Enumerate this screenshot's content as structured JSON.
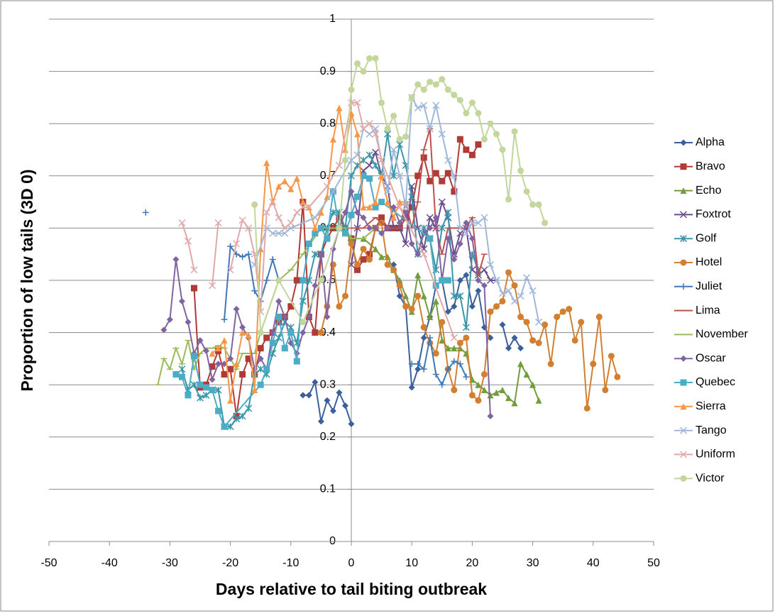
{
  "chart_data": {
    "type": "line",
    "xlabel": "Days relative to tail biting outbreak",
    "ylabel": "Proportion of low tails (3D 0)",
    "xlim": [
      -50,
      50
    ],
    "xticks": [
      -50,
      -40,
      -30,
      -20,
      -10,
      0,
      10,
      20,
      30,
      40,
      50
    ],
    "ylim": [
      0,
      1
    ],
    "yticks": [
      0,
      0.1,
      0.2,
      0.3,
      0.4,
      0.5,
      0.6,
      0.7,
      0.8,
      0.9,
      1
    ],
    "grid": true,
    "legend": "right",
    "series": [
      {
        "name": "Alpha",
        "color": "#3b5f9a",
        "marker": "diamond",
        "x": [
          -8,
          -7,
          -6,
          -5,
          -4,
          -3,
          -2,
          -1,
          0,
          3,
          7,
          8,
          9,
          10,
          11,
          12,
          13,
          14,
          15,
          16,
          17,
          18,
          19,
          20,
          21,
          22,
          23,
          24,
          25,
          26,
          27,
          28
        ],
        "values": [
          0.28,
          0.28,
          0.305,
          0.23,
          0.27,
          0.25,
          0.285,
          0.26,
          0.225,
          null,
          0.53,
          0.47,
          0.45,
          0.295,
          0.33,
          0.39,
          0.43,
          0.49,
          0.5,
          0.44,
          0.45,
          0.5,
          0.51,
          0.45,
          0.48,
          0.41,
          0.39,
          null,
          0.415,
          0.37,
          0.39,
          0.37
        ]
      },
      {
        "name": "Bravo",
        "color": "#b03a35",
        "marker": "square",
        "x": [
          -26,
          -25,
          -24,
          -23,
          -22,
          -21,
          -20,
          -19,
          -18,
          -17,
          -16,
          -15,
          -14,
          -13,
          -12,
          -11,
          -10,
          -9,
          -8,
          -7,
          -6,
          -5,
          -4,
          -3,
          -2,
          -1,
          0,
          1,
          2,
          3,
          4,
          5,
          6,
          7,
          8,
          9,
          10,
          11,
          12,
          13,
          14,
          15,
          16,
          17,
          18,
          19,
          20,
          21
        ],
        "values": [
          0.485,
          0.295,
          0.3,
          0.335,
          0.365,
          0.32,
          0.33,
          0.24,
          0.32,
          0.35,
          0.32,
          0.37,
          0.39,
          0.4,
          0.42,
          0.43,
          0.45,
          0.5,
          0.65,
          0.43,
          0.4,
          0.55,
          0.58,
          0.6,
          0.62,
          0.6,
          0.58,
          0.52,
          0.54,
          0.55,
          0.6,
          0.62,
          0.6,
          0.6,
          0.6,
          0.62,
          0.64,
          0.7,
          0.735,
          0.69,
          0.705,
          0.69,
          0.705,
          0.67,
          0.77,
          0.75,
          0.74,
          0.76
        ]
      },
      {
        "name": "Echo",
        "color": "#739c3c",
        "marker": "triangle",
        "x": [
          -2,
          0,
          2,
          4,
          5,
          6,
          7,
          8,
          9,
          10,
          11,
          12,
          13,
          14,
          15,
          16,
          17,
          18,
          19,
          20,
          21,
          22,
          23,
          24,
          25,
          26,
          27,
          28,
          29,
          30,
          31
        ],
        "values": [
          0.6,
          0.58,
          0.58,
          0.56,
          0.545,
          0.545,
          0.52,
          0.5,
          0.47,
          0.44,
          0.51,
          0.47,
          0.43,
          0.46,
          0.385,
          0.37,
          0.37,
          0.37,
          0.36,
          0.31,
          0.3,
          0.29,
          0.28,
          0.285,
          0.29,
          0.275,
          0.265,
          0.34,
          0.32,
          0.3,
          0.27
        ]
      },
      {
        "name": "Foxtrot",
        "color": "#6a4c8c",
        "marker": "x",
        "x": [
          0,
          1,
          2,
          3,
          4,
          5,
          6,
          7,
          8,
          9,
          10,
          11,
          12,
          13,
          14,
          15,
          16,
          17,
          18,
          19,
          20,
          21,
          22,
          23,
          24
        ],
        "values": [
          0.53,
          0.6,
          0.71,
          0.72,
          0.745,
          0.7,
          0.68,
          0.6,
          0.6,
          0.57,
          0.68,
          0.6,
          0.56,
          0.62,
          0.6,
          0.65,
          0.62,
          0.55,
          0.59,
          0.6,
          0.52,
          0.51,
          0.52,
          0.5,
          0.5
        ]
      },
      {
        "name": "Golf",
        "color": "#3b95a8",
        "marker": "star",
        "x": [
          -28,
          -27,
          -26,
          -25,
          -24,
          -23,
          -22,
          -21,
          -20,
          -19,
          -18,
          -17,
          -16,
          -15,
          -14,
          -13,
          -12,
          -11,
          -10,
          -9,
          -8,
          -7,
          -6,
          -5,
          -4,
          -3,
          -2,
          -1,
          0,
          1,
          2,
          3,
          4,
          5,
          6,
          7,
          8,
          9,
          10,
          11,
          12,
          13,
          14,
          15,
          16,
          17,
          18,
          19,
          20,
          21
        ],
        "values": [
          0.33,
          0.29,
          0.3,
          0.275,
          0.28,
          0.29,
          0.29,
          0.22,
          0.22,
          0.235,
          0.24,
          0.255,
          0.32,
          0.33,
          0.32,
          0.36,
          0.39,
          0.42,
          0.41,
          0.38,
          0.46,
          0.5,
          0.55,
          0.55,
          0.6,
          0.63,
          0.63,
          0.6,
          0.7,
          0.72,
          0.73,
          0.74,
          0.72,
          0.7,
          0.78,
          0.7,
          0.76,
          0.72,
          0.66,
          0.55,
          0.6,
          0.58,
          0.52,
          0.6,
          0.63,
          0.47,
          0.47,
          0.41,
          0.55,
          0.52
        ]
      },
      {
        "name": "Hotel",
        "color": "#d27f32",
        "marker": "circle",
        "x": [
          -5,
          -4,
          -3,
          -2,
          -1,
          0,
          1,
          2,
          3,
          4,
          5,
          6,
          7,
          8,
          9,
          10,
          11,
          12,
          13,
          14,
          15,
          16,
          17,
          18,
          19,
          20,
          21,
          22,
          23,
          24,
          25,
          26,
          27,
          28,
          29,
          30,
          31,
          32,
          33,
          34,
          35,
          36,
          37,
          38,
          39,
          40,
          41,
          42,
          43,
          44
        ],
        "values": [
          0.4,
          0.45,
          0.53,
          0.45,
          0.47,
          0.57,
          0.53,
          0.56,
          0.54,
          0.6,
          0.61,
          0.53,
          0.52,
          0.49,
          0.45,
          0.445,
          0.47,
          0.41,
          0.38,
          0.36,
          0.42,
          0.33,
          0.29,
          0.38,
          0.39,
          0.28,
          0.27,
          0.32,
          0.44,
          0.45,
          0.46,
          0.515,
          0.49,
          0.43,
          0.42,
          0.385,
          0.38,
          0.415,
          0.34,
          0.43,
          0.44,
          0.445,
          0.385,
          0.42,
          0.255,
          0.34,
          0.43,
          0.29,
          0.355,
          0.315
        ]
      },
      {
        "name": "Juliet",
        "color": "#3e78b8",
        "marker": "plus",
        "x": [
          -34,
          -30,
          -21,
          -20,
          -19,
          -18,
          -17,
          -16,
          -15,
          -14,
          -13,
          -12,
          0,
          10,
          11,
          12,
          13,
          14,
          15,
          16,
          17,
          18,
          19
        ],
        "values": [
          0.63,
          null,
          0.425,
          0.565,
          0.55,
          0.545,
          0.55,
          0.48,
          0.46,
          0.5,
          0.54,
          0.5,
          null,
          0.34,
          0.34,
          0.33,
          0.39,
          0.32,
          0.3,
          0.33,
          0.345,
          0.34,
          0.315
        ]
      },
      {
        "name": "Lima",
        "color": "#c0504d",
        "marker": "dash",
        "x": [
          0,
          2,
          4,
          6,
          8,
          9,
          10,
          11,
          12,
          13,
          14,
          15,
          16,
          17,
          18,
          19,
          20,
          21,
          22
        ],
        "values": [
          0.6,
          0.6,
          0.62,
          0.6,
          0.6,
          0.65,
          0.6,
          0.65,
          0.75,
          0.79,
          0.6,
          0.55,
          0.6,
          0.6,
          0.6,
          0.6,
          0.62,
          0.51,
          0.55
        ]
      },
      {
        "name": "November",
        "color": "#9bbb59",
        "marker": "dash",
        "x": [
          -32,
          -31,
          -30,
          -29,
          -28,
          -27,
          -26,
          -25,
          -24,
          -23,
          -22,
          -21,
          -20,
          -19,
          -18,
          -17,
          -16,
          -15,
          -12,
          -10,
          -8,
          -5,
          -3,
          -1,
          0,
          2,
          4
        ],
        "values": [
          0.3,
          0.35,
          0.33,
          0.37,
          0.34,
          0.385,
          0.33,
          0.36,
          0.37,
          0.37,
          0.375,
          0.37,
          0.35,
          0.33,
          0.36,
          0.36,
          0.36,
          0.4,
          0.5,
          0.52,
          0.55,
          0.6,
          0.6,
          0.6,
          0.58,
          0.58,
          0.6
        ]
      },
      {
        "name": "Oscar",
        "color": "#8064a2",
        "marker": "diamond",
        "x": [
          -31,
          -30,
          -29,
          -28,
          -27,
          -26,
          -25,
          -24,
          -23,
          -22,
          -21,
          -20,
          -19,
          -18,
          -17,
          -16,
          -15,
          -14,
          -13,
          -12,
          -11,
          -10,
          -9,
          -8,
          -7,
          -6,
          -5,
          -4,
          -3,
          -2,
          -1,
          0,
          1,
          2,
          3,
          4,
          5,
          6,
          7,
          8,
          9,
          10,
          11,
          12,
          13,
          14,
          15,
          16,
          17,
          18,
          19,
          20,
          21,
          22,
          23
        ],
        "values": [
          0.405,
          0.425,
          0.54,
          0.46,
          0.42,
          0.36,
          0.385,
          0.365,
          0.31,
          0.34,
          0.34,
          0.35,
          0.445,
          0.41,
          0.39,
          0.33,
          0.35,
          0.33,
          0.4,
          0.46,
          0.43,
          0.38,
          0.36,
          0.4,
          0.43,
          0.49,
          0.55,
          0.43,
          0.56,
          0.6,
          0.63,
          0.67,
          0.63,
          0.62,
          0.6,
          0.6,
          0.59,
          0.6,
          0.64,
          0.61,
          0.63,
          0.57,
          0.55,
          0.59,
          0.6,
          0.62,
          0.5,
          0.58,
          0.54,
          0.57,
          0.61,
          0.58,
          0.5,
          0.49,
          0.24
        ]
      },
      {
        "name": "Quebec",
        "color": "#4bacc6",
        "marker": "square",
        "x": [
          -29,
          -28,
          -27,
          -26,
          -25,
          -24,
          -23,
          -22,
          -21,
          -15,
          -14,
          -13,
          -12,
          -11,
          -10,
          -9,
          -8,
          -7,
          -6,
          -5,
          -4,
          -3,
          -2,
          -1,
          0,
          1,
          2,
          3,
          4,
          5,
          13,
          14,
          15,
          16
        ],
        "values": [
          0.32,
          0.315,
          0.28,
          0.355,
          0.3,
          0.295,
          0.29,
          0.25,
          0.22,
          0.3,
          0.33,
          0.38,
          0.43,
          0.37,
          0.4,
          0.345,
          0.5,
          0.57,
          0.59,
          0.6,
          0.58,
          0.67,
          0.6,
          0.59,
          0.625,
          0.66,
          0.7,
          0.695,
          0.64,
          0.65,
          0.58,
          0.49,
          0.5,
          0.5
        ]
      },
      {
        "name": "Sierra",
        "color": "#f79646",
        "marker": "triangle",
        "x": [
          -23,
          -22,
          -21,
          -20,
          -19,
          -18,
          -17,
          -16,
          -15,
          -14,
          -13,
          -12,
          -11,
          -10,
          -9,
          -8,
          -7,
          -6,
          -5,
          -4,
          -3,
          -2,
          -1,
          0,
          1,
          2,
          3,
          4,
          5,
          6,
          7,
          8,
          9
        ],
        "values": [
          0.36,
          0.37,
          0.385,
          0.27,
          0.34,
          0.4,
          0.395,
          0.29,
          0.56,
          0.725,
          0.65,
          0.68,
          0.69,
          0.675,
          0.695,
          0.65,
          0.64,
          0.6,
          0.63,
          0.66,
          0.77,
          0.83,
          0.75,
          0.82,
          0.78,
          0.64,
          0.64,
          0.65,
          0.7,
          0.65,
          0.62,
          0.65,
          0.65
        ]
      },
      {
        "name": "Tango",
        "color": "#9fb7dc",
        "marker": "x",
        "x": [
          -16,
          -14,
          -13,
          -12,
          -11,
          -10,
          -6,
          -3,
          0,
          1,
          2,
          3,
          4,
          5,
          6,
          7,
          8,
          9,
          10,
          11,
          12,
          13,
          14,
          15,
          16,
          17,
          18,
          19,
          20,
          21,
          22,
          23,
          24,
          25,
          26,
          27,
          28,
          29,
          30,
          31
        ],
        "values": [
          0.53,
          0.6,
          0.59,
          0.59,
          0.59,
          0.6,
          0.62,
          0.67,
          0.73,
          0.74,
          0.79,
          0.78,
          0.79,
          0.73,
          0.67,
          0.75,
          0.7,
          0.64,
          0.85,
          0.83,
          0.835,
          0.79,
          0.835,
          0.78,
          0.73,
          0.7,
          0.6,
          0.59,
          0.61,
          0.61,
          0.62,
          0.53,
          0.5,
          0.475,
          0.48,
          0.46,
          0.47,
          0.505,
          0.48,
          0.42
        ]
      },
      {
        "name": "Uniform",
        "color": "#e0a9a8",
        "marker": "x",
        "x": [
          -28,
          -27,
          -26,
          -25,
          -23,
          -22,
          -21,
          -20,
          -19,
          -18,
          -17,
          -16,
          -15,
          -14,
          -13,
          -12,
          -11,
          -10,
          -9,
          -8,
          -7,
          -4,
          -2,
          0,
          1,
          2,
          3,
          4,
          5,
          8,
          12,
          17
        ],
        "values": [
          0.61,
          0.575,
          0.52,
          null,
          0.49,
          0.61,
          null,
          0.52,
          0.57,
          0.615,
          0.6,
          0.55,
          0.44,
          0.63,
          0.65,
          0.62,
          0.6,
          0.61,
          0.63,
          0.64,
          0.64,
          0.68,
          0.72,
          0.84,
          0.84,
          0.79,
          0.8,
          0.78,
          0.73,
          0.64,
          0.55,
          0.39
        ]
      },
      {
        "name": "Victor",
        "color": "#c3d69b",
        "marker": "circle",
        "x": [
          -16,
          -15,
          -12,
          -8,
          -5,
          -2,
          -1,
          0,
          1,
          2,
          3,
          4,
          5,
          6,
          7,
          8,
          9,
          10,
          11,
          12,
          13,
          14,
          15,
          16,
          17,
          18,
          19,
          20,
          21,
          22,
          23,
          24,
          25,
          26,
          27,
          28,
          29,
          30,
          31,
          32
        ],
        "values": [
          0.645,
          0.4,
          0.5,
          0.42,
          0.5,
          0.6,
          0.73,
          0.865,
          0.915,
          0.9,
          0.925,
          0.925,
          0.84,
          0.79,
          0.815,
          0.77,
          0.775,
          0.85,
          0.875,
          0.865,
          0.88,
          0.875,
          0.885,
          0.865,
          0.855,
          0.845,
          0.82,
          0.84,
          0.82,
          0.77,
          0.8,
          0.78,
          0.75,
          0.655,
          0.785,
          0.71,
          0.67,
          0.645,
          0.645,
          0.61
        ]
      }
    ]
  }
}
